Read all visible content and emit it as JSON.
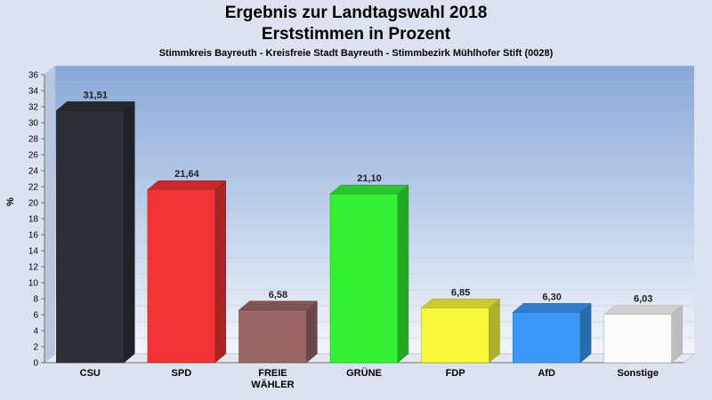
{
  "chart_data": {
    "type": "bar",
    "title": "Ergebnis zur Landtagswahl 2018",
    "title2": "Erststimmen in Prozent",
    "subtitle": "Stimmkreis Bayreuth - Kreisfreie Stadt Bayreuth - Stimmbezirk Mühlhofer Stift (0028)",
    "ylabel": "%",
    "xlabel": "",
    "ylim": [
      0,
      36
    ],
    "ytick_step": 2,
    "grid": true,
    "categories": [
      "CSU",
      "SPD",
      "FREIE\nWÄHLER",
      "GRÜNE",
      "FDP",
      "AfD",
      "Sonstige"
    ],
    "value_labels": [
      "31,51",
      "21,64",
      "6,58",
      "21,10",
      "6,85",
      "6,30",
      "6,03"
    ],
    "values": [
      31.51,
      21.64,
      6.58,
      21.1,
      6.85,
      6.3,
      6.03
    ],
    "colors": [
      "#2c3038",
      "#f23434",
      "#9a6565",
      "#33f033",
      "#f8f83a",
      "#3a98f8",
      "#fcfcfc"
    ]
  }
}
